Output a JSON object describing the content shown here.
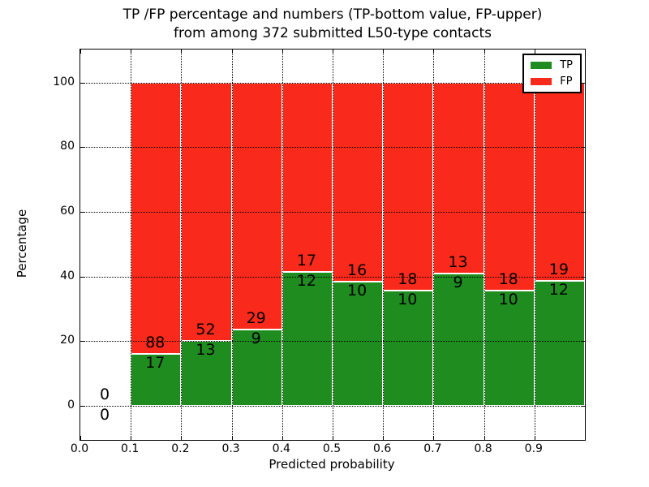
{
  "title": {
    "line1": "TP /FP percentage and numbers (TP-bottom value, FP-upper)",
    "line2": "from among 372 submitted L50-type contacts"
  },
  "chart_data": {
    "type": "bar",
    "stacked": true,
    "title": "TP /FP percentage and numbers (TP-bottom value, FP-upper) from among 372 submitted L50-type contacts",
    "xlabel": "Predicted probability",
    "ylabel": "Percentage",
    "xlim": [
      0.0,
      1.0
    ],
    "ylim": [
      -10.5,
      110.2
    ],
    "x_tick_labels": [
      "0.0",
      "0.1",
      "0.2",
      "0.3",
      "0.4",
      "0.5",
      "0.6",
      "0.7",
      "0.8",
      "0.9"
    ],
    "y_tick_labels": [
      "0",
      "20",
      "40",
      "60",
      "80",
      "100"
    ],
    "grid": "dotted",
    "grid_on": true,
    "total_submitted": 372,
    "legend": {
      "position": "upper-right",
      "entries": [
        {
          "label": "TP",
          "color": "#1e8c1e"
        },
        {
          "label": "FP",
          "color": "#f92a1b"
        }
      ]
    },
    "bins": [
      {
        "range": [
          0.0,
          0.1
        ],
        "tp": 0,
        "fp": 0
      },
      {
        "range": [
          0.1,
          0.2
        ],
        "tp": 17,
        "fp": 88
      },
      {
        "range": [
          0.2,
          0.3
        ],
        "tp": 13,
        "fp": 52
      },
      {
        "range": [
          0.3,
          0.4
        ],
        "tp": 9,
        "fp": 29
      },
      {
        "range": [
          0.4,
          0.5
        ],
        "tp": 12,
        "fp": 17
      },
      {
        "range": [
          0.5,
          0.6
        ],
        "tp": 10,
        "fp": 16
      },
      {
        "range": [
          0.6,
          0.7
        ],
        "tp": 10,
        "fp": 18
      },
      {
        "range": [
          0.7,
          0.8
        ],
        "tp": 9,
        "fp": 13
      },
      {
        "range": [
          0.8,
          0.9
        ],
        "tp": 10,
        "fp": 18
      },
      {
        "range": [
          0.9,
          1.0
        ],
        "tp": 12,
        "fp": 19
      }
    ],
    "series": [
      {
        "name": "TP",
        "color": "#1e8c1e",
        "values_pct": [
          0,
          16.19,
          20.0,
          23.68,
          41.38,
          38.46,
          35.71,
          40.91,
          35.71,
          38.71
        ]
      },
      {
        "name": "FP",
        "color": "#f92a1b",
        "values_pct": [
          0,
          83.81,
          80.0,
          76.32,
          58.62,
          61.54,
          64.29,
          59.09,
          64.29,
          61.29
        ]
      }
    ]
  },
  "colors": {
    "tp": "#1e8c1e",
    "fp": "#f92a1b",
    "grid": "#000000",
    "axis": "#000000",
    "background": "#ffffff"
  }
}
